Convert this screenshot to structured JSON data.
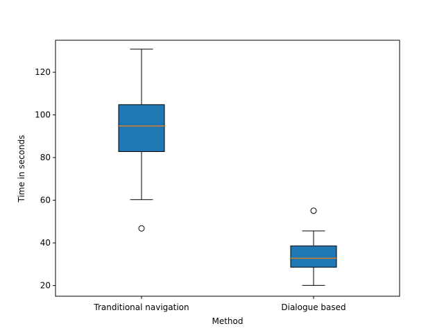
{
  "chart_data": {
    "type": "box",
    "title": "",
    "xlabel": "Method",
    "ylabel": "Time in seconds",
    "ylim": [
      15,
      135
    ],
    "yticks": [
      20,
      40,
      60,
      80,
      100,
      120
    ],
    "categories": [
      "Tranditional navigation",
      "Dialogue based"
    ],
    "boxes": [
      {
        "category": "Tranditional navigation",
        "whisker_low": 60.3,
        "q1": 82.8,
        "median": 94.8,
        "q3": 104.8,
        "whisker_high": 130.8,
        "outliers": [
          46.8
        ]
      },
      {
        "category": "Dialogue based",
        "whisker_low": 20.1,
        "q1": 28.6,
        "median": 32.8,
        "q3": 38.6,
        "whisker_high": 45.6,
        "outliers": [
          55.1
        ]
      }
    ],
    "grid": false,
    "colors": {
      "box_fill": "#1f77b4",
      "median": "#ff7f0e",
      "edge": "#000000"
    }
  }
}
